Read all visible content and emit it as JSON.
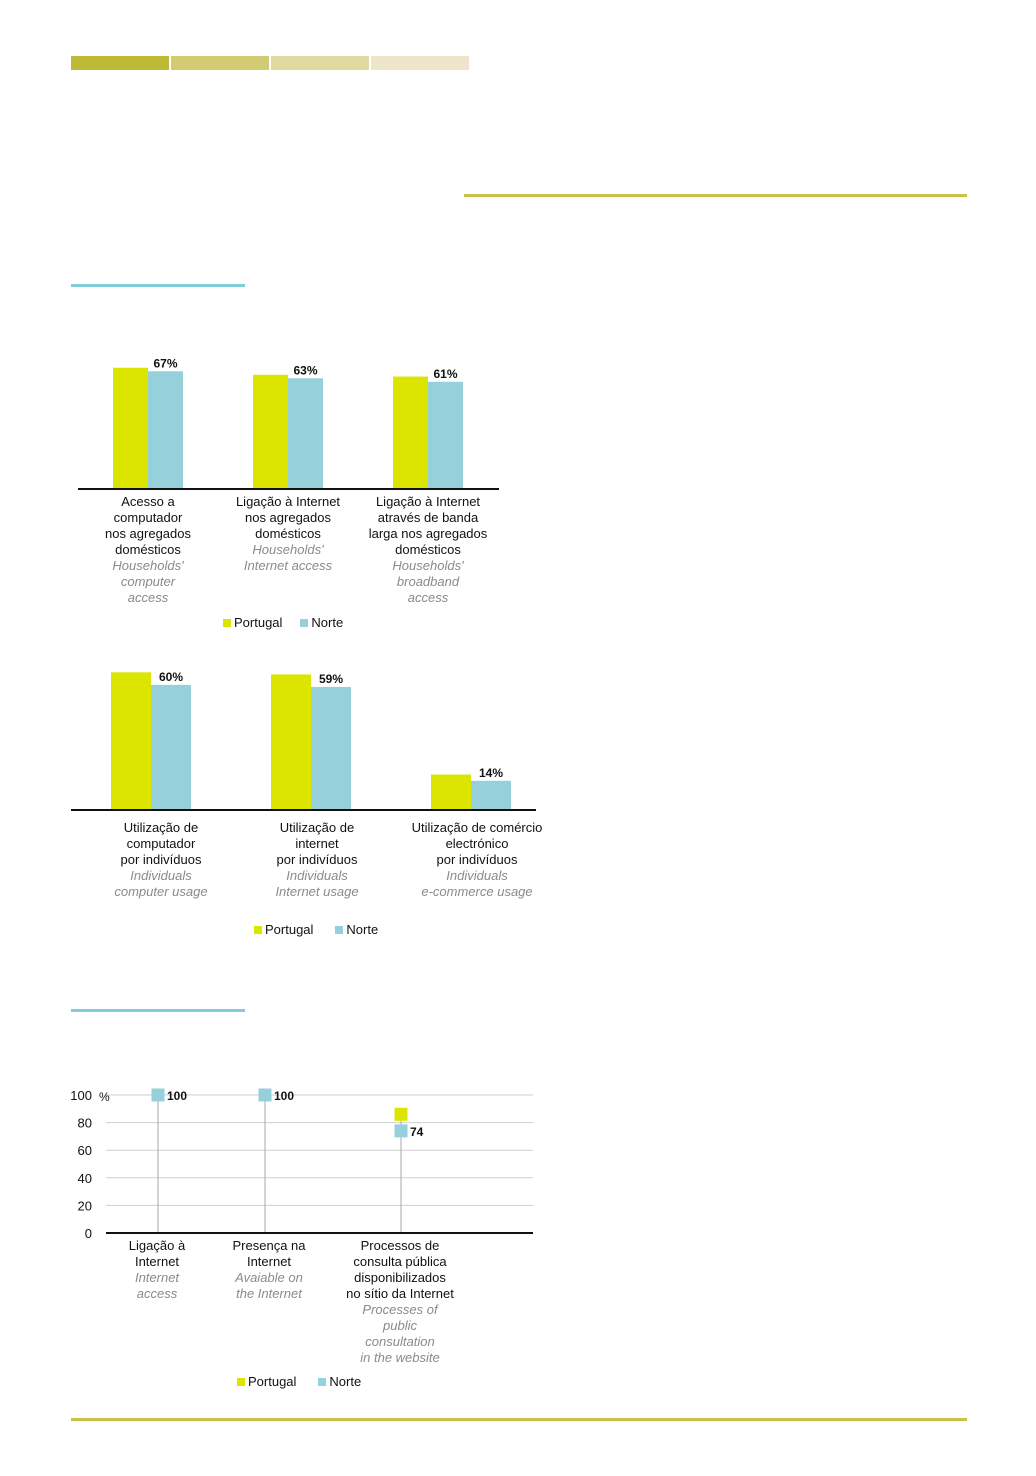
{
  "colors": {
    "portugal": "#dce500",
    "norte": "#96d0da",
    "header_seg_1": "#bfba35",
    "header_seg_2": "#d2cb73",
    "header_seg_3": "#e0d9a0",
    "header_seg_4": "#ede6cc",
    "rule_olive": "#c9bf4a",
    "rule_teal": "#80ccd8"
  },
  "legend": {
    "portugal": "Portugal",
    "norte": "Norte"
  },
  "chart_data": [
    {
      "type": "bar",
      "categories": [
        {
          "pt": [
            "Acesso a",
            "computador",
            "nos agregados",
            "domésticos"
          ],
          "en": [
            "Households'",
            "computer",
            "access"
          ]
        },
        {
          "pt": [
            "Ligação à Internet",
            "nos agregados",
            "domésticos"
          ],
          "en": [
            "Households'",
            "Internet access"
          ]
        },
        {
          "pt": [
            "Ligação à Internet",
            "através de banda",
            "larga nos agregados",
            "domésticos"
          ],
          "en": [
            "Households'",
            "broadband",
            "access"
          ]
        }
      ],
      "series": [
        {
          "name": "Portugal",
          "values": [
            69,
            65,
            64
          ]
        },
        {
          "name": "Norte",
          "values": [
            67,
            63,
            61
          ]
        }
      ],
      "labels": [
        "67%",
        "63%",
        "61%"
      ],
      "ylim": [
        0,
        70
      ]
    },
    {
      "type": "bar",
      "categories": [
        {
          "pt": [
            "Utilização de",
            "computador",
            "por indivíduos"
          ],
          "en": [
            "Individuals",
            "computer usage"
          ]
        },
        {
          "pt": [
            "Utilização de",
            "internet",
            "por indivíduos"
          ],
          "en": [
            "Individuals",
            "Internet usage"
          ]
        },
        {
          "pt": [
            "Utilização de comércio",
            "electrónico",
            "por indivíduos"
          ],
          "en": [
            "Individuals",
            "e-commerce usage"
          ]
        }
      ],
      "series": [
        {
          "name": "Portugal",
          "values": [
            66,
            65,
            17
          ]
        },
        {
          "name": "Norte",
          "values": [
            60,
            59,
            14
          ]
        }
      ],
      "labels": [
        "60%",
        "59%",
        "14%"
      ],
      "ylim": [
        0,
        70
      ]
    },
    {
      "type": "scatter",
      "unit": "%",
      "yticks": [
        0,
        20,
        40,
        60,
        80,
        100
      ],
      "ylim": [
        0,
        100
      ],
      "categories": [
        {
          "pt": [
            "Ligação à",
            "Internet"
          ],
          "en": [
            "Internet",
            "access"
          ]
        },
        {
          "pt": [
            "Presença na",
            "Internet"
          ],
          "en": [
            "Avaiable on",
            "the Internet"
          ]
        },
        {
          "pt": [
            "Processos de",
            "consulta pública",
            "disponibilizados",
            "no sítio da Internet"
          ],
          "en": [
            "Processes of",
            "public",
            "consultation",
            "in the website"
          ]
        }
      ],
      "series": [
        {
          "name": "Portugal",
          "values": [
            100,
            100,
            86
          ]
        },
        {
          "name": "Norte",
          "values": [
            100,
            100,
            74
          ]
        }
      ],
      "labels": [
        "100",
        "100",
        "74"
      ],
      "grid": true
    }
  ]
}
